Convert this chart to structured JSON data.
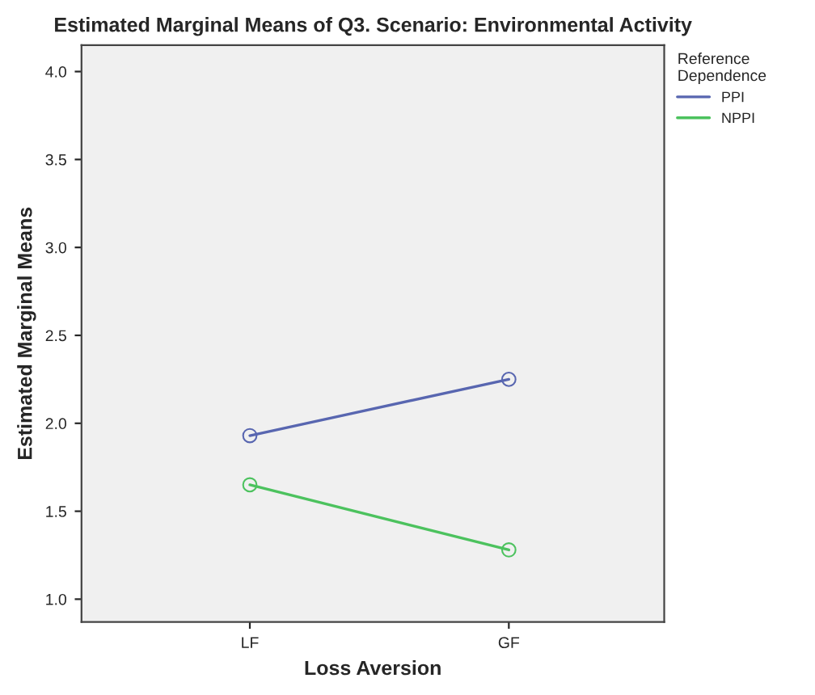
{
  "chart_data": {
    "type": "line",
    "title": "Estimated Marginal Means of Q3. Scenario: Environmental Activity",
    "xlabel": "Loss Aversion",
    "ylabel": "Estimated Marginal Means",
    "legend_title": "Reference\nDependence",
    "categories": [
      "LF",
      "GF"
    ],
    "series": [
      {
        "name": "PPI",
        "color": "#5866b0",
        "values": [
          1.93,
          2.25
        ]
      },
      {
        "name": "NPPI",
        "color": "#4cc25e",
        "values": [
          1.65,
          1.28
        ]
      }
    ],
    "ylim": [
      0.87,
      4.15
    ],
    "yticks": [
      {
        "value": 1.0,
        "label": "1.0"
      },
      {
        "value": 1.5,
        "label": "1.5"
      },
      {
        "value": 2.0,
        "label": "2.0"
      },
      {
        "value": 2.5,
        "label": "2.5"
      },
      {
        "value": 3.0,
        "label": "3.0"
      },
      {
        "value": 3.5,
        "label": "3.5"
      },
      {
        "value": 4.0,
        "label": "4.0"
      }
    ],
    "grid": false,
    "legend": "top right",
    "marker": "circle",
    "line_style": "solid"
  }
}
